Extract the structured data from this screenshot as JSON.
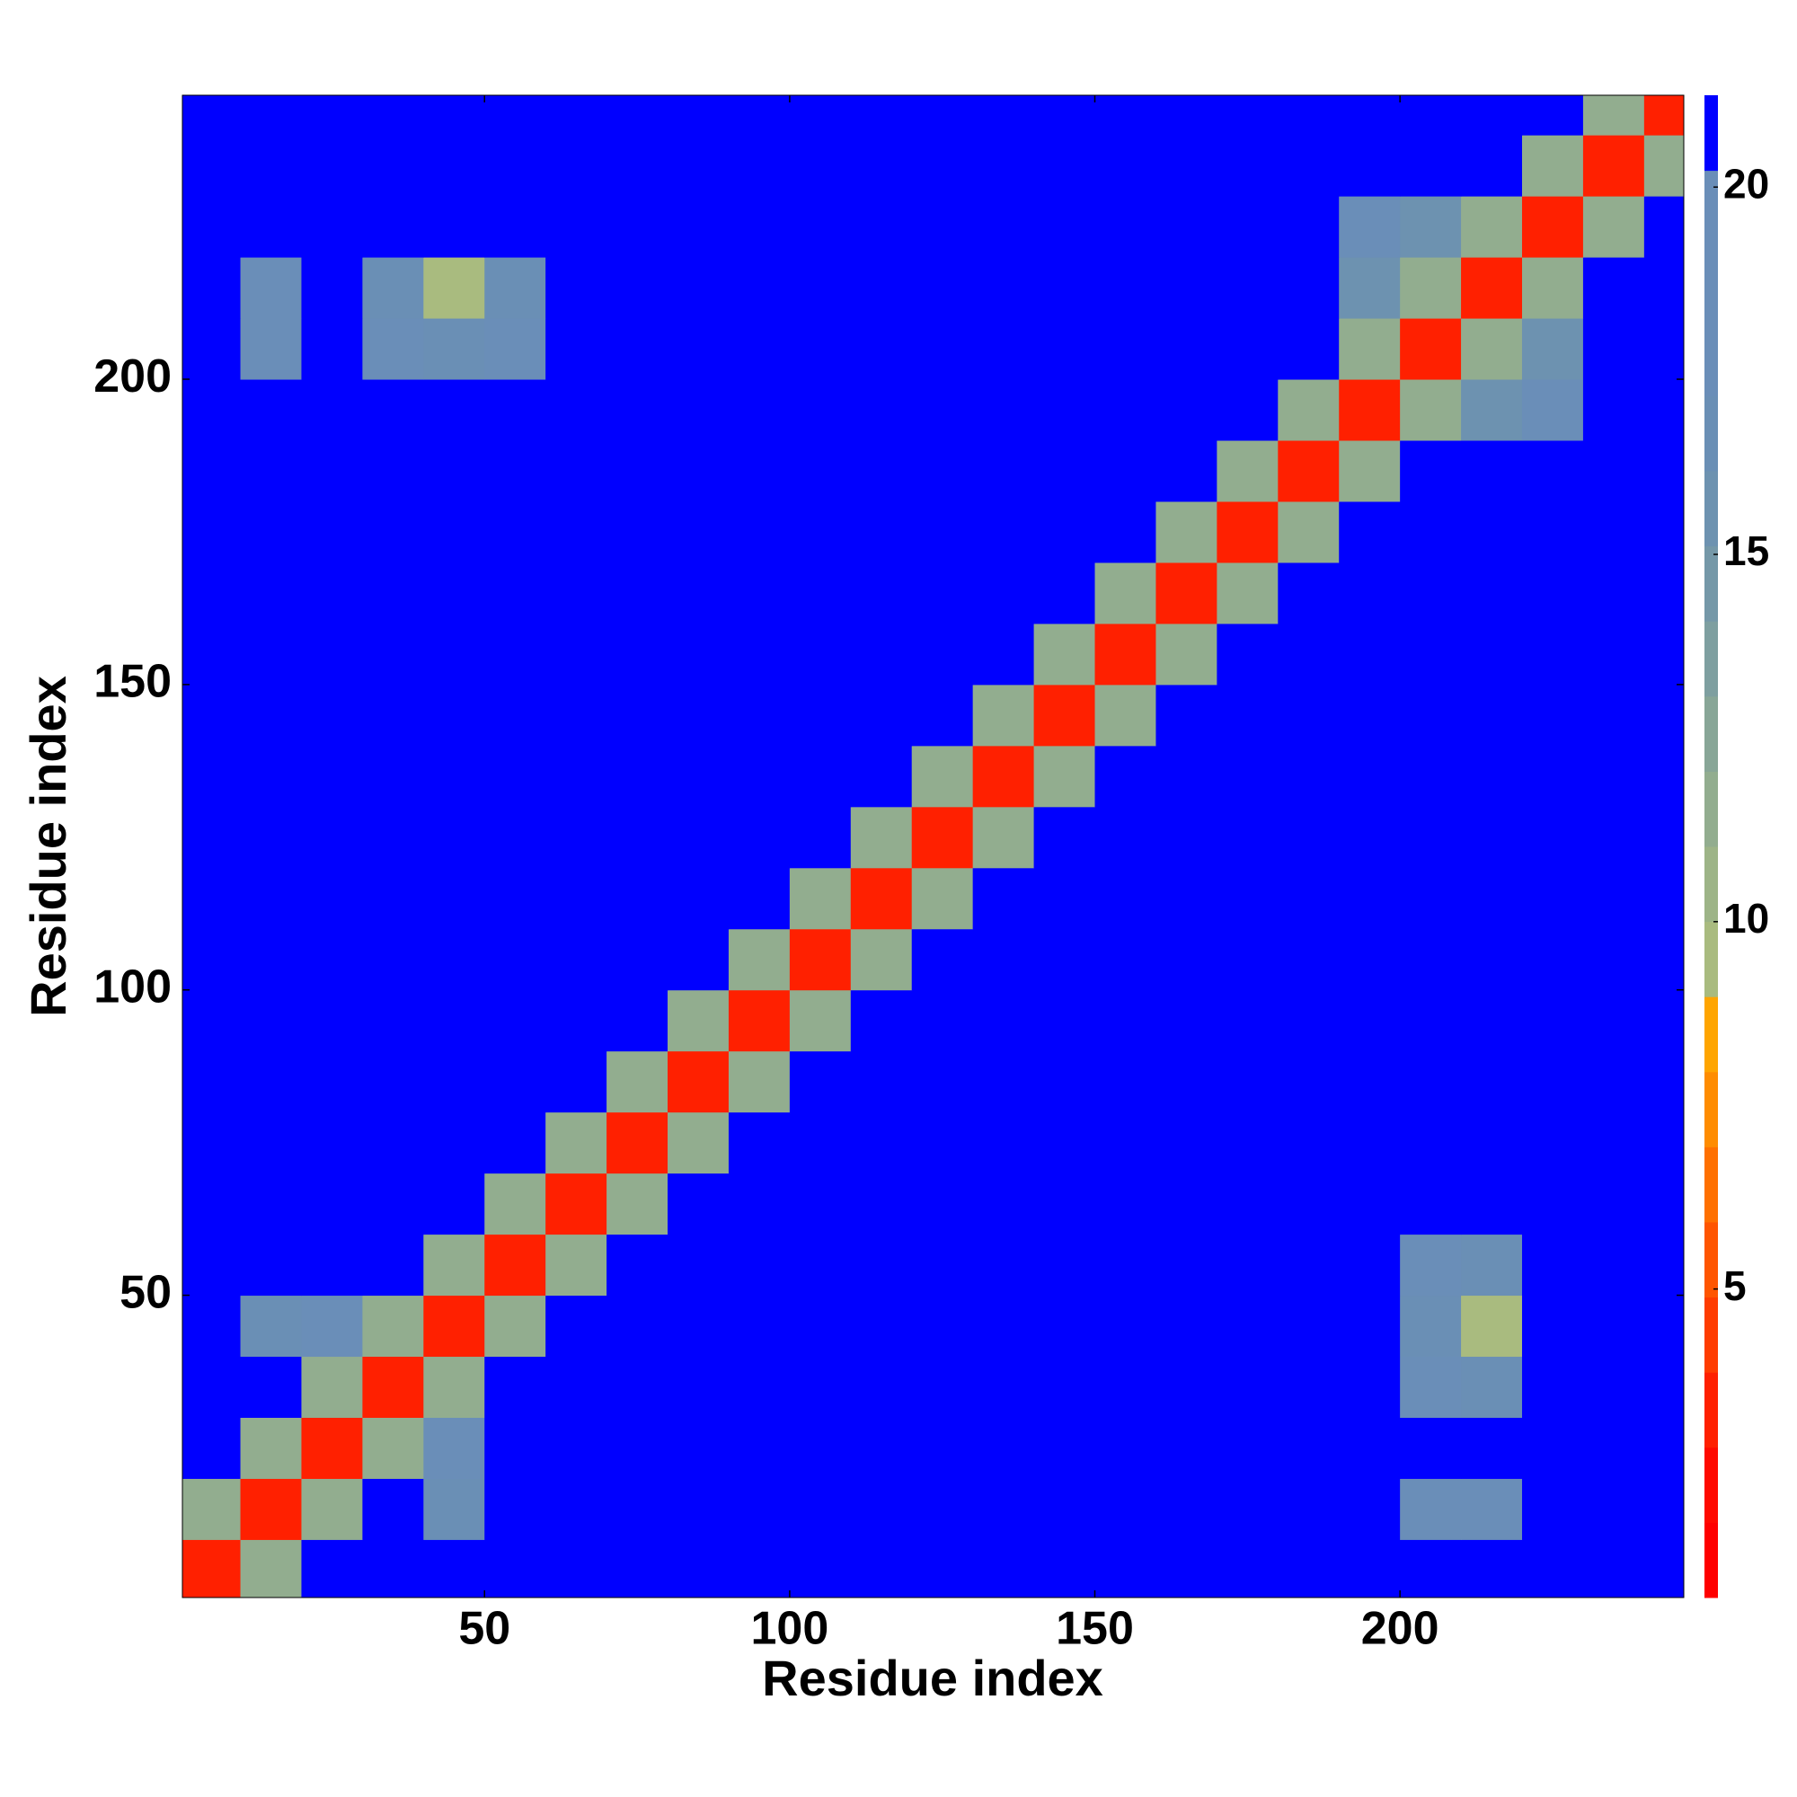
{
  "chart_data": {
    "type": "heatmap",
    "xlabel": "Residue index",
    "ylabel": "Residue index",
    "xlim": [
      0.5,
      246.5
    ],
    "ylim": [
      0.5,
      246.5
    ],
    "xticks": [
      50,
      100,
      150,
      200
    ],
    "yticks": [
      50,
      100,
      150,
      200
    ],
    "x": [
      5,
      15,
      25,
      35,
      45,
      55,
      65,
      75,
      85,
      95,
      105,
      115,
      125,
      135,
      145,
      155,
      165,
      175,
      185,
      195,
      205,
      215,
      225,
      235,
      245
    ],
    "y": [
      5,
      15,
      25,
      35,
      45,
      55,
      65,
      75,
      85,
      95,
      105,
      115,
      125,
      135,
      145,
      155,
      165,
      175,
      185,
      195,
      205,
      215,
      225,
      235,
      245
    ],
    "z": [
      [
        3,
        12,
        22,
        22,
        22,
        22,
        22,
        22,
        22,
        22,
        22,
        22,
        22,
        22,
        22,
        22,
        22,
        22,
        22,
        22,
        22,
        22,
        22,
        22,
        22
      ],
      [
        12,
        3,
        12,
        22,
        17,
        22,
        22,
        22,
        22,
        22,
        22,
        22,
        22,
        22,
        22,
        22,
        22,
        22,
        22,
        22,
        18,
        18,
        22,
        22,
        22
      ],
      [
        22,
        12,
        3,
        12,
        18,
        22,
        22,
        22,
        22,
        22,
        22,
        22,
        22,
        22,
        22,
        22,
        22,
        22,
        22,
        22,
        22,
        22,
        22,
        22,
        22
      ],
      [
        22,
        22,
        12,
        3,
        12,
        22,
        22,
        22,
        22,
        22,
        22,
        22,
        22,
        22,
        22,
        22,
        22,
        22,
        22,
        22,
        18,
        17,
        22,
        22,
        22
      ],
      [
        22,
        17,
        18,
        12,
        3,
        12,
        22,
        22,
        22,
        22,
        22,
        22,
        22,
        22,
        22,
        22,
        22,
        22,
        22,
        22,
        17,
        9,
        22,
        22,
        22
      ],
      [
        22,
        22,
        22,
        22,
        12,
        3,
        12,
        22,
        22,
        22,
        22,
        22,
        22,
        22,
        22,
        22,
        22,
        22,
        22,
        22,
        18,
        17,
        22,
        22,
        22
      ],
      [
        22,
        22,
        22,
        22,
        22,
        12,
        3,
        12,
        22,
        22,
        22,
        22,
        22,
        22,
        22,
        22,
        22,
        22,
        22,
        22,
        22,
        22,
        22,
        22,
        22
      ],
      [
        22,
        22,
        22,
        22,
        22,
        22,
        12,
        3,
        12,
        22,
        22,
        22,
        22,
        22,
        22,
        22,
        22,
        22,
        22,
        22,
        22,
        22,
        22,
        22,
        22
      ],
      [
        22,
        22,
        22,
        22,
        22,
        22,
        22,
        12,
        3,
        12,
        22,
        22,
        22,
        22,
        22,
        22,
        22,
        22,
        22,
        22,
        22,
        22,
        22,
        22,
        22
      ],
      [
        22,
        22,
        22,
        22,
        22,
        22,
        22,
        22,
        12,
        3,
        12,
        22,
        22,
        22,
        22,
        22,
        22,
        22,
        22,
        22,
        22,
        22,
        22,
        22,
        22
      ],
      [
        22,
        22,
        22,
        22,
        22,
        22,
        22,
        22,
        22,
        12,
        3,
        12,
        22,
        22,
        22,
        22,
        22,
        22,
        22,
        22,
        22,
        22,
        22,
        22,
        22
      ],
      [
        22,
        22,
        22,
        22,
        22,
        22,
        22,
        22,
        22,
        22,
        12,
        3,
        12,
        22,
        22,
        22,
        22,
        22,
        22,
        22,
        22,
        22,
        22,
        22,
        22
      ],
      [
        22,
        22,
        22,
        22,
        22,
        22,
        22,
        22,
        22,
        22,
        22,
        12,
        3,
        12,
        22,
        22,
        22,
        22,
        22,
        22,
        22,
        22,
        22,
        22,
        22
      ],
      [
        22,
        22,
        22,
        22,
        22,
        22,
        22,
        22,
        22,
        22,
        22,
        22,
        12,
        3,
        12,
        22,
        22,
        22,
        22,
        22,
        22,
        22,
        22,
        22,
        22
      ],
      [
        22,
        22,
        22,
        22,
        22,
        22,
        22,
        22,
        22,
        22,
        22,
        22,
        22,
        12,
        3,
        12,
        22,
        22,
        22,
        22,
        22,
        22,
        22,
        22,
        22
      ],
      [
        22,
        22,
        22,
        22,
        22,
        22,
        22,
        22,
        22,
        22,
        22,
        22,
        22,
        22,
        12,
        3,
        12,
        22,
        22,
        22,
        22,
        22,
        22,
        22,
        22
      ],
      [
        22,
        22,
        22,
        22,
        22,
        22,
        22,
        22,
        22,
        22,
        22,
        22,
        22,
        22,
        22,
        12,
        3,
        12,
        22,
        22,
        22,
        22,
        22,
        22,
        22
      ],
      [
        22,
        22,
        22,
        22,
        22,
        22,
        22,
        22,
        22,
        22,
        22,
        22,
        22,
        22,
        22,
        22,
        12,
        3,
        12,
        22,
        22,
        22,
        22,
        22,
        22
      ],
      [
        22,
        22,
        22,
        22,
        22,
        22,
        22,
        22,
        22,
        22,
        22,
        22,
        22,
        22,
        22,
        22,
        22,
        12,
        3,
        12,
        22,
        22,
        22,
        22,
        22
      ],
      [
        22,
        22,
        22,
        22,
        22,
        22,
        22,
        22,
        22,
        22,
        22,
        22,
        22,
        22,
        22,
        22,
        22,
        22,
        12,
        3,
        12,
        16,
        18,
        22,
        22
      ],
      [
        22,
        18,
        22,
        18,
        17,
        18,
        22,
        22,
        22,
        22,
        22,
        22,
        22,
        22,
        22,
        22,
        22,
        22,
        22,
        12,
        3,
        12,
        16,
        22,
        22
      ],
      [
        22,
        18,
        22,
        17,
        9,
        17,
        22,
        22,
        22,
        22,
        22,
        22,
        22,
        22,
        22,
        22,
        22,
        22,
        22,
        16,
        12,
        3,
        12,
        22,
        22
      ],
      [
        22,
        22,
        22,
        22,
        22,
        22,
        22,
        22,
        22,
        22,
        22,
        22,
        22,
        22,
        22,
        22,
        22,
        22,
        22,
        18,
        16,
        12,
        3,
        12,
        22
      ],
      [
        22,
        22,
        22,
        22,
        22,
        22,
        22,
        22,
        22,
        22,
        22,
        22,
        22,
        22,
        22,
        22,
        22,
        22,
        22,
        22,
        22,
        22,
        12,
        3,
        12
      ],
      [
        22,
        22,
        22,
        22,
        22,
        22,
        22,
        22,
        22,
        22,
        22,
        22,
        22,
        22,
        22,
        22,
        22,
        22,
        22,
        22,
        22,
        22,
        22,
        12,
        3
      ]
    ],
    "clim": [
      0.8,
      21.25
    ],
    "cticks": [
      5,
      10,
      15,
      20
    ],
    "colors": [
      "#ff0000",
      "#ff0a00",
      "#ff2000",
      "#ff3c00",
      "#ff5500",
      "#ff7000",
      "#ff8c00",
      "#ffa500",
      "#a9bb7f",
      "#9db487",
      "#92ad8f",
      "#88a697",
      "#7e9fa0",
      "#7598a8",
      "#6d92b0",
      "#6a8fb5",
      "#6a8eb8",
      "#6a8eb8",
      "#6a8eb8",
      "#0000ff"
    ]
  }
}
